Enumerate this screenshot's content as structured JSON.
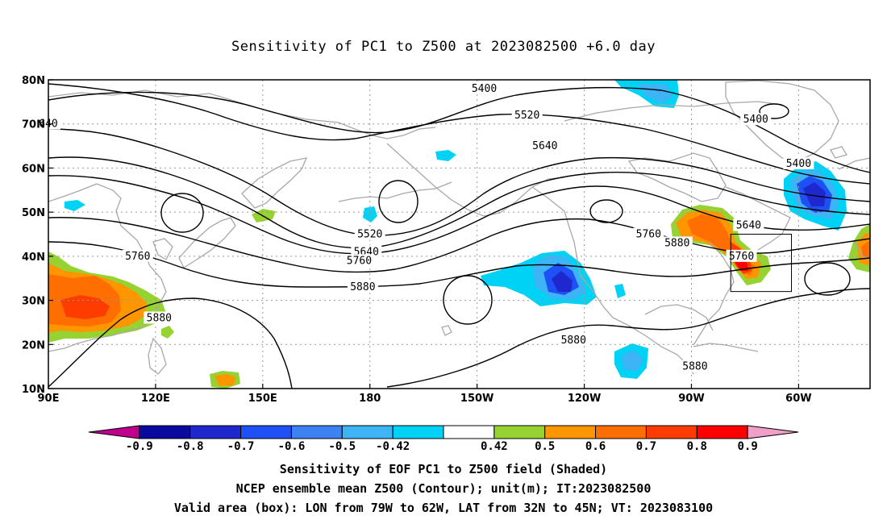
{
  "title": "Sensitivity of PC1 to Z500 at 2023082500 +6.0 day",
  "map": {
    "lat_labels": [
      "80N",
      "70N",
      "60N",
      "50N",
      "40N",
      "30N",
      "20N",
      "10N"
    ],
    "lon_labels": [
      "90E",
      "120E",
      "150E",
      "180",
      "150W",
      "120W",
      "90W",
      "60W"
    ],
    "lon_range_deg_east": [
      90,
      320
    ],
    "lat_range_deg": [
      10,
      80
    ],
    "grid": "dotted",
    "colors": {
      "coast": "#a8a8a8",
      "contour": "#000000",
      "grid": "#9a9a9a"
    },
    "contour_labels": [
      {
        "text": "5400",
        "lon": 288,
        "lat": 71
      },
      {
        "text": "5400",
        "lon": 212,
        "lat": 78
      },
      {
        "text": "5520",
        "lon": 224,
        "lat": 72
      },
      {
        "text": "5640",
        "lon": 229,
        "lat": 65
      },
      {
        "text": "5400",
        "lon": 300,
        "lat": 61
      },
      {
        "text": "5760",
        "lon": 258,
        "lat": 45
      },
      {
        "text": "5880",
        "lon": 266,
        "lat": 43
      },
      {
        "text": "5520",
        "lon": 180,
        "lat": 45
      },
      {
        "text": "5640",
        "lon": 179,
        "lat": 41
      },
      {
        "text": "5760",
        "lon": 177,
        "lat": 39
      },
      {
        "text": "5880",
        "lon": 178,
        "lat": 33
      },
      {
        "text": "5760",
        "lon": 115,
        "lat": 40
      },
      {
        "text": "5880",
        "lon": 121,
        "lat": 26
      },
      {
        "text": "5880",
        "lon": 237,
        "lat": 21
      },
      {
        "text": "5880",
        "lon": 271,
        "lat": 15
      },
      {
        "text": "5640",
        "lon": 286,
        "lat": 47
      },
      {
        "text": "5760",
        "lon": 284,
        "lat": 40
      },
      {
        "text": "640",
        "lon": 90,
        "lat": 70
      }
    ],
    "valid_box": {
      "lon_west": 79,
      "lon_east": 62,
      "lat_south": 32,
      "lat_north": 45
    }
  },
  "colorbar": {
    "labels": [
      "-0.9",
      "-0.8",
      "-0.7",
      "-0.6",
      "-0.5",
      "-0.42",
      "0.42",
      "0.5",
      "0.6",
      "0.7",
      "0.8",
      "0.9"
    ],
    "colors": [
      "#c0008c",
      "#0a0aa0",
      "#1e28cd",
      "#1e50f5",
      "#3c82f5",
      "#3cb4f5",
      "#00d2f5",
      "#ffffff",
      "#96d232",
      "#ff9600",
      "#ff6e00",
      "#ff3c00",
      "#ff0000",
      "#f0a0c8"
    ]
  },
  "footer": {
    "line1": "Sensitivity of EOF PC1 to Z500 field (Shaded)",
    "line2": "NCEP ensemble mean Z500 (Contour); unit(m); IT:2023082500",
    "line3": "Valid area (box): LON from 79W to 62W, LAT from 32N to 45N; VT: 2023083100"
  }
}
